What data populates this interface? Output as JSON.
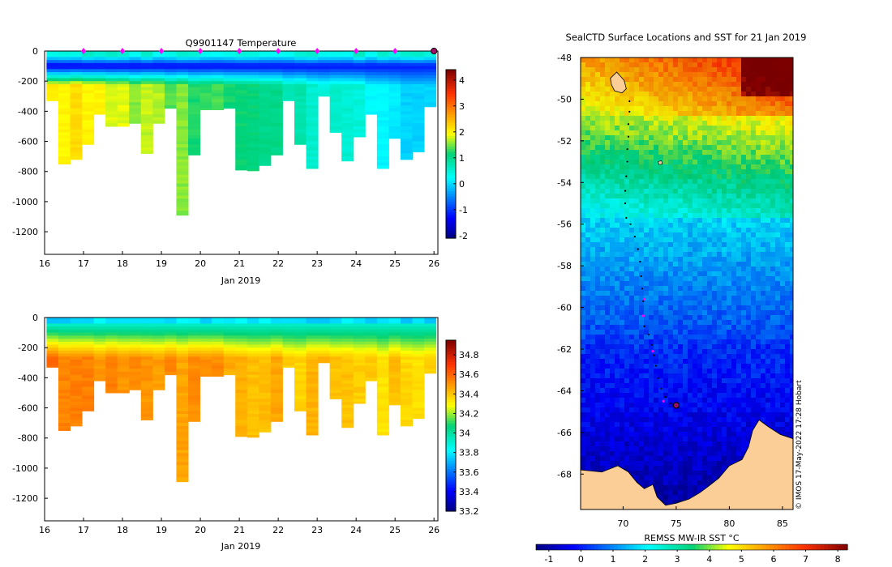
{
  "figure": {
    "colors": {
      "land": "#fbcd97",
      "track_point": "#000000",
      "profile_marker": "#ff00ff",
      "current_marker": "#a0106a"
    },
    "credit": "© IMOS 17-May-2022 17:28 Hobart"
  },
  "chart_data": [
    {
      "type": "heatmap",
      "name": "temperature-section",
      "title": "Q9901147  Temperature",
      "xlabel": "Jan 2019",
      "ylabel": "",
      "x_ticks": [
        "16",
        "17",
        "18",
        "19",
        "20",
        "21",
        "22",
        "23",
        "24",
        "25",
        "26"
      ],
      "xlim": [
        16,
        26.1
      ],
      "y_ticks": [
        "0",
        "-200",
        "-400",
        "-600",
        "-800",
        "-1000",
        "-1200"
      ],
      "ylim": [
        -1350,
        0
      ],
      "colorbar_ticks": [
        "4",
        "3",
        "2",
        "1",
        "0",
        "-1",
        "-2"
      ],
      "colorbar_range": [
        -2.1,
        4.4
      ],
      "colormap": "jet",
      "profile_dates": [
        17.0,
        18.0,
        19.0,
        20.0,
        21.0,
        22.0,
        23.0,
        24.0,
        25.0,
        26.0
      ],
      "profile_max_depth_m": [
        330,
        750,
        720,
        620,
        420,
        500,
        500,
        480,
        680,
        480,
        380,
        1090,
        690,
        390,
        390,
        380,
        790,
        795,
        760,
        690,
        330,
        620,
        780,
        300,
        540,
        730,
        570,
        420,
        780,
        580,
        720,
        670,
        370
      ]
    },
    {
      "type": "heatmap",
      "name": "salinity-section",
      "title": "",
      "xlabel": "Jan 2019",
      "ylabel": "",
      "x_ticks": [
        "16",
        "17",
        "18",
        "19",
        "20",
        "21",
        "22",
        "23",
        "24",
        "25",
        "26"
      ],
      "xlim": [
        16,
        26.1
      ],
      "y_ticks": [
        "0",
        "-200",
        "-400",
        "-600",
        "-800",
        "-1000",
        "-1200"
      ],
      "ylim": [
        -1350,
        0
      ],
      "colorbar_ticks": [
        "34.8",
        "34.6",
        "34.4",
        "34.2",
        "34",
        "33.8",
        "33.6",
        "33.4",
        "33.2"
      ],
      "colorbar_range": [
        33.2,
        34.95
      ],
      "colormap": "jet"
    },
    {
      "type": "heatmap",
      "name": "sst-map",
      "title": "SealCTD Surface Locations and SST for 21 Jan 2019",
      "xlabel": "",
      "ylabel": "",
      "x_ticks": [
        "70",
        "75",
        "80",
        "85"
      ],
      "xlim": [
        66,
        86
      ],
      "y_ticks": [
        "-48",
        "-50",
        "-52",
        "-54",
        "-56",
        "-58",
        "-60",
        "-62",
        "-64",
        "-66",
        "-68"
      ],
      "ylim": [
        -69.7,
        -48
      ],
      "colorbar_label": "REMSS MW-IR SST °C",
      "colorbar_ticks": [
        "-1",
        "0",
        "1",
        "2",
        "3",
        "4",
        "5",
        "6",
        "7",
        "8"
      ],
      "colorbar_range": [
        -1.4,
        8.3
      ],
      "colormap": "jet",
      "current_position": {
        "lon": 75.0,
        "lat": -64.7
      },
      "track_points": [
        [
          70.6,
          -50.1
        ],
        [
          70.6,
          -50.6
        ],
        [
          70.5,
          -51.2
        ],
        [
          70.5,
          -51.8
        ],
        [
          70.4,
          -52.4
        ],
        [
          70.4,
          -53.0
        ],
        [
          70.3,
          -53.7
        ],
        [
          70.2,
          -54.4
        ],
        [
          70.2,
          -55.0
        ],
        [
          70.3,
          -55.7
        ],
        [
          70.7,
          -56.0
        ],
        [
          71.1,
          -56.6
        ],
        [
          71.4,
          -57.2
        ],
        [
          71.6,
          -57.8
        ],
        [
          71.7,
          -58.5
        ],
        [
          71.8,
          -59.1
        ],
        [
          71.9,
          -59.7
        ],
        [
          71.9,
          -60.4
        ],
        [
          72.0,
          -60.9
        ],
        [
          72.4,
          -61.3
        ],
        [
          72.7,
          -61.8
        ],
        [
          72.9,
          -62.3
        ],
        [
          73.1,
          -62.8
        ],
        [
          73.3,
          -63.4
        ],
        [
          73.6,
          -63.9
        ],
        [
          74.0,
          -64.3
        ],
        [
          74.5,
          -64.6
        ]
      ],
      "profile_points": [
        [
          72.0,
          -59.6
        ],
        [
          71.9,
          -60.4
        ],
        [
          72.8,
          -62.1
        ],
        [
          73.8,
          -64.5
        ]
      ]
    }
  ]
}
